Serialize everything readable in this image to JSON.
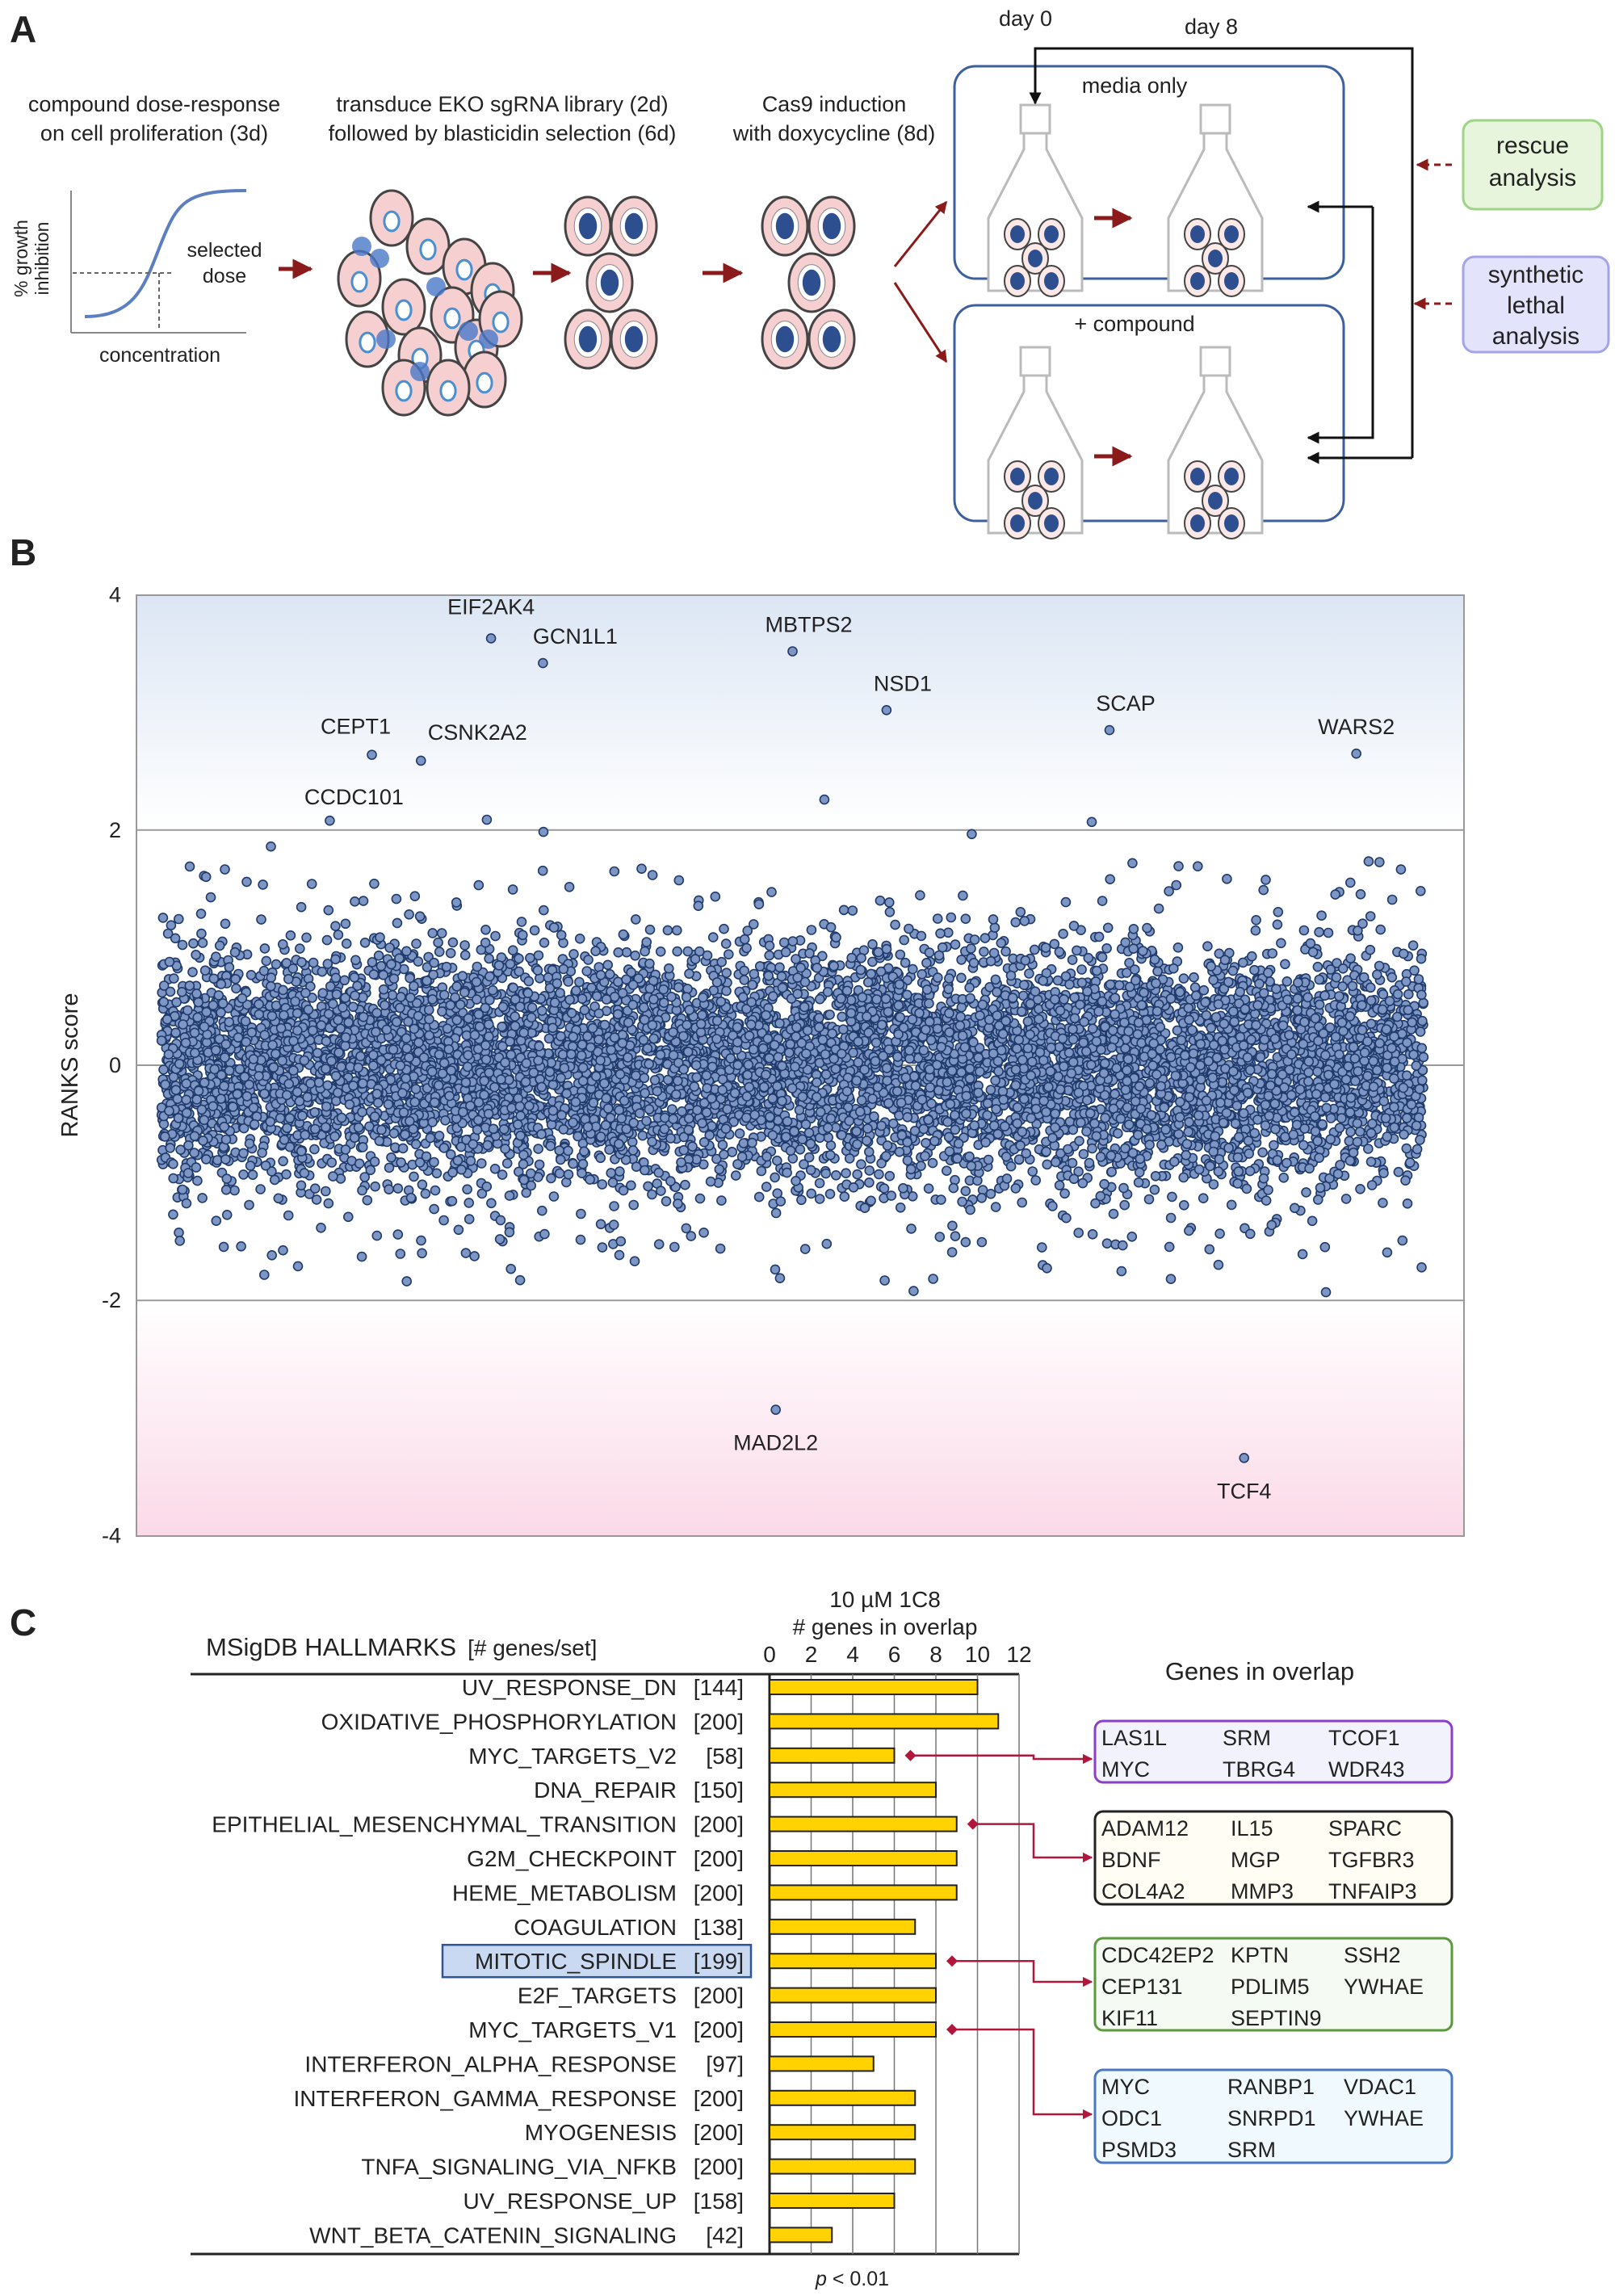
{
  "panels": {
    "a": "A",
    "b": "B",
    "c": "C"
  },
  "panel_a": {
    "step1": [
      "compound dose-response",
      "on cell proliferation (3d)"
    ],
    "step2": [
      "transduce EKO sgRNA library (2d)",
      "followed by blasticidin selection (6d)"
    ],
    "step3": [
      "Cas9 induction",
      "with doxycycline (8d)"
    ],
    "dose_ylabel": [
      "% growth",
      "inhibition"
    ],
    "dose_xlabel": "concentration",
    "selected_dose": [
      "selected",
      "dose"
    ],
    "day0": "day 0",
    "day8": "day 8",
    "media_only": "media only",
    "plus_compound": "+ compound",
    "rescue": [
      "rescue",
      "analysis"
    ],
    "synthetic": [
      "synthetic",
      "lethal",
      "analysis"
    ],
    "colors": {
      "arrow": "#8b1a1a",
      "rescue_box": "#e6f5dc",
      "synthetic_box": "#e3e3fb",
      "cell": "#f6d0d0"
    }
  },
  "chart_data": [
    {
      "type": "scatter",
      "panel": "B",
      "ylabel": "RANKS score",
      "ylim": [
        -4,
        4
      ],
      "yticks": [
        "4",
        "2",
        "0",
        "-2",
        "-4"
      ],
      "reference_lines": [
        2,
        0,
        -2
      ],
      "grid": false,
      "colors": {
        "point_fill": "#7d96c4",
        "point_stroke": "#1f3a6b",
        "top_band": "#dce6f4",
        "bottom_band": "#fbd9e8"
      },
      "labeled_points": [
        {
          "gene": "EIF2AK4",
          "x": 2350,
          "y": 3.63
        },
        {
          "gene": "GCN1L1",
          "x": 2720,
          "y": 3.42
        },
        {
          "gene": "MBTPS2",
          "x": 4500,
          "y": 3.52
        },
        {
          "gene": "NSD1",
          "x": 5170,
          "y": 3.02
        },
        {
          "gene": "SCAP",
          "x": 6760,
          "y": 2.85
        },
        {
          "gene": "WARS2",
          "x": 8520,
          "y": 2.65
        },
        {
          "gene": "CEPT1",
          "x": 1500,
          "y": 2.64
        },
        {
          "gene": "CSNK2A2",
          "x": 1850,
          "y": 2.59
        },
        {
          "gene": "CCDC101",
          "x": 1200,
          "y": 2.08
        },
        {
          "gene": "MAD2L2",
          "x": 4380,
          "y": -2.93
        },
        {
          "gene": "TCF4",
          "x": 7720,
          "y": -3.34
        }
      ]
    },
    {
      "type": "bar",
      "panel": "C",
      "orientation": "horizontal",
      "title": "10 µM 1C8",
      "xlabel": "# genes in overlap",
      "category_header": "MSigDB HALLMARKS",
      "category_header_suffix": "[# genes/set]",
      "xlim": [
        0,
        12
      ],
      "xticks": [
        "0",
        "2",
        "4",
        "6",
        "8",
        "10",
        "12"
      ],
      "grid": true,
      "bar_color": "#ffd200",
      "footnote_p": "p",
      "footnote_rest": " < 0.01",
      "categories": [
        {
          "name": "UV_RESPONSE_DN",
          "size": "[144]",
          "value": 10
        },
        {
          "name": "OXIDATIVE_PHOSPHORYLATION",
          "size": "[200]",
          "value": 11
        },
        {
          "name": "MYC_TARGETS_V2",
          "size": "[58]",
          "value": 6
        },
        {
          "name": "DNA_REPAIR",
          "size": "[150]",
          "value": 8
        },
        {
          "name": "EPITHELIAL_MESENCHYMAL_TRANSITION",
          "size": "[200]",
          "value": 9
        },
        {
          "name": "G2M_CHECKPOINT",
          "size": "[200]",
          "value": 9
        },
        {
          "name": "HEME_METABOLISM",
          "size": "[200]",
          "value": 9
        },
        {
          "name": "COAGULATION",
          "size": "[138]",
          "value": 7
        },
        {
          "name": "MITOTIC_SPINDLE",
          "size": "[199]",
          "value": 8,
          "highlighted": true
        },
        {
          "name": "E2F_TARGETS",
          "size": "[200]",
          "value": 8
        },
        {
          "name": "MYC_TARGETS_V1",
          "size": "[200]",
          "value": 8
        },
        {
          "name": "INTERFERON_ALPHA_RESPONSE",
          "size": "[97]",
          "value": 5
        },
        {
          "name": "INTERFERON_GAMMA_RESPONSE",
          "size": "[200]",
          "value": 7
        },
        {
          "name": "MYOGENESIS",
          "size": "[200]",
          "value": 7
        },
        {
          "name": "TNFA_SIGNALING_VIA_NFKB",
          "size": "[200]",
          "value": 7
        },
        {
          "name": "UV_RESPONSE_UP",
          "size": "[158]",
          "value": 6
        },
        {
          "name": "WNT_BETA_CATENIN_SIGNALING",
          "size": "[42]",
          "value": 3
        }
      ]
    }
  ],
  "genes_in_overlap": {
    "title": "Genes in overlap",
    "boxes": [
      {
        "set": "MYC_TARGETS_V2",
        "stroke": "#8b3fc8",
        "fill": "#f2f2fc",
        "columns": [
          [
            "LAS1L",
            "MYC"
          ],
          [
            "SRM",
            "TBRG4"
          ],
          [
            "TCOF1",
            "WDR43"
          ]
        ]
      },
      {
        "set": "EPITHELIAL_MESENCHYMAL_TRANSITION",
        "stroke": "#222222",
        "fill": "#fffdf4",
        "columns": [
          [
            "ADAM12",
            "BDNF",
            "COL4A2"
          ],
          [
            "IL15",
            "MGP",
            "MMP3"
          ],
          [
            "SPARC",
            "TGFBR3",
            "TNFAIP3"
          ]
        ]
      },
      {
        "set": "MITOTIC_SPINDLE",
        "stroke": "#5a9a3c",
        "fill": "#f5fbf2",
        "columns": [
          [
            "CDC42EP2",
            "CEP131",
            "KIF11"
          ],
          [
            "KPTN",
            "PDLIM5",
            "SEPTIN9"
          ],
          [
            "SSH2",
            "YWHAE"
          ]
        ]
      },
      {
        "set": "MYC_TARGETS_V1",
        "stroke": "#4a78c0",
        "fill": "#f0fafe",
        "columns": [
          [
            "MYC",
            "ODC1",
            "PSMD3"
          ],
          [
            "RANBP1",
            "SNRPD1",
            "SRM"
          ],
          [
            "VDAC1",
            "YWHAE"
          ]
        ]
      }
    ]
  }
}
